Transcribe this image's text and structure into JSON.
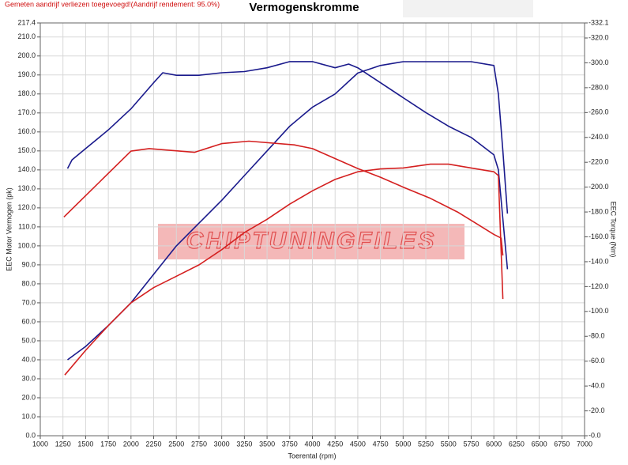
{
  "chart_data": {
    "type": "line",
    "title": "Vermogenskromme",
    "subtitle": "Gemeten aandrijf verliezen toegevoegd!(Aandrijf rendement: 95.0%)",
    "watermark": "CHIPTUNINGFILES",
    "x_label": "Toerental (rpm)",
    "y_label": "EEC Motor Vermogen (pk)",
    "y2_label": "EEC Torque (Nm)",
    "xlim": [
      1000,
      7000
    ],
    "xticks": [
      1000,
      1250,
      1500,
      1750,
      2000,
      2250,
      2500,
      2750,
      3000,
      3250,
      3500,
      3750,
      4000,
      4250,
      4500,
      4750,
      5000,
      5250,
      5500,
      5750,
      6000,
      6250,
      6500,
      6750,
      7000
    ],
    "ylim": [
      0,
      217.4
    ],
    "yticks": [
      {
        "value": 0,
        "label": "0.0"
      },
      {
        "value": 10,
        "label": "10.0"
      },
      {
        "value": 20,
        "label": "20.0"
      },
      {
        "value": 30,
        "label": "30.0"
      },
      {
        "value": 40,
        "label": "40.0"
      },
      {
        "value": 50,
        "label": "50.0"
      },
      {
        "value": 60,
        "label": "60.0"
      },
      {
        "value": 70,
        "label": "70.0"
      },
      {
        "value": 80,
        "label": "80.0"
      },
      {
        "value": 90,
        "label": "90.0"
      },
      {
        "value": 100,
        "label": "100.0"
      },
      {
        "value": 110,
        "label": "110.0"
      },
      {
        "value": 120,
        "label": "120.0"
      },
      {
        "value": 130,
        "label": "130.0"
      },
      {
        "value": 140,
        "label": "140.0"
      },
      {
        "value": 150,
        "label": "150.0"
      },
      {
        "value": 160,
        "label": "160.0"
      },
      {
        "value": 170,
        "label": "170.0"
      },
      {
        "value": 180,
        "label": "180.0"
      },
      {
        "value": 190,
        "label": "190.0"
      },
      {
        "value": 200,
        "label": "200.0"
      },
      {
        "value": 210,
        "label": "210.0"
      },
      217.4
    ],
    "y2lim": [
      0,
      332.1
    ],
    "y2ticks": [
      {
        "value": 0,
        "label": "-0.0"
      },
      {
        "value": 20,
        "label": "-20.0"
      },
      {
        "value": 40,
        "label": "-40.0"
      },
      {
        "value": 60,
        "label": "-60.0"
      },
      {
        "value": 80,
        "label": "-80.0"
      },
      {
        "value": 100,
        "label": "-100.0"
      },
      {
        "value": 120,
        "label": "-120.0"
      },
      {
        "value": 140,
        "label": "-140.0"
      },
      {
        "value": 160,
        "label": "-160.0"
      },
      {
        "value": 180,
        "label": "-180.0"
      },
      {
        "value": 200,
        "label": "-200.0"
      },
      {
        "value": 220,
        "label": "-220.0"
      },
      {
        "value": 240,
        "label": "-240.0"
      },
      {
        "value": 260,
        "label": "-260.0"
      },
      {
        "value": 280,
        "label": "-280.0"
      },
      {
        "value": 300,
        "label": "-300.0"
      },
      {
        "value": 320,
        "label": "-320.0"
      },
      {
        "value": 332.1,
        "label": "-332.1"
      }
    ],
    "grid": true,
    "series": [
      {
        "color": "#1a1a8c",
        "axis": "y",
        "x": [
          1300,
          1500,
          1750,
          2000,
          2250,
          2500,
          2750,
          3000,
          3250,
          3500,
          3750,
          4000,
          4250,
          4500,
          4750,
          5000,
          5250,
          5500,
          5750,
          6000,
          6050,
          6100,
          6150
        ],
        "values": [
          40,
          47,
          58,
          70,
          85,
          100,
          112,
          124,
          137,
          150,
          163,
          173,
          180,
          191,
          195,
          197,
          197,
          197,
          197,
          195,
          180,
          150,
          117
        ]
      },
      {
        "color": "#1a1a8c",
        "axis": "y2",
        "x": [
          1300,
          1350,
          1500,
          1750,
          2000,
          2250,
          2350,
          2500,
          2750,
          3000,
          3250,
          3500,
          3750,
          4000,
          4250,
          4400,
          4500,
          4750,
          5000,
          5250,
          5500,
          5750,
          6000,
          6050,
          6150
        ],
        "values": [
          215,
          222,
          231,
          246,
          263,
          284,
          292,
          290,
          290,
          292,
          293,
          296,
          301,
          301,
          296,
          299,
          296,
          284,
          272,
          260,
          249,
          240,
          226,
          214,
          134
        ]
      },
      {
        "color": "#d42020",
        "axis": "y",
        "x": [
          1270,
          1500,
          1750,
          2000,
          2250,
          2500,
          2750,
          3000,
          3250,
          3500,
          3750,
          4000,
          4250,
          4500,
          4750,
          5000,
          5300,
          5500,
          5750,
          6000,
          6050,
          6100
        ],
        "values": [
          32,
          45,
          58,
          70,
          78,
          84,
          90,
          98,
          107,
          114,
          122,
          129,
          135,
          139,
          140.5,
          141,
          143,
          143,
          141,
          139,
          137,
          72
        ]
      },
      {
        "color": "#d42020",
        "axis": "y2",
        "x": [
          1260,
          2000,
          2200,
          2700,
          3000,
          3300,
          3800,
          4000,
          4250,
          4500,
          4750,
          5000,
          5300,
          5600,
          5800,
          6000,
          6080,
          6100
        ],
        "values": [
          176,
          229,
          231,
          228,
          235,
          237,
          234,
          231,
          223,
          215,
          208,
          200,
          191,
          180,
          171,
          162,
          159,
          145
        ]
      }
    ]
  }
}
